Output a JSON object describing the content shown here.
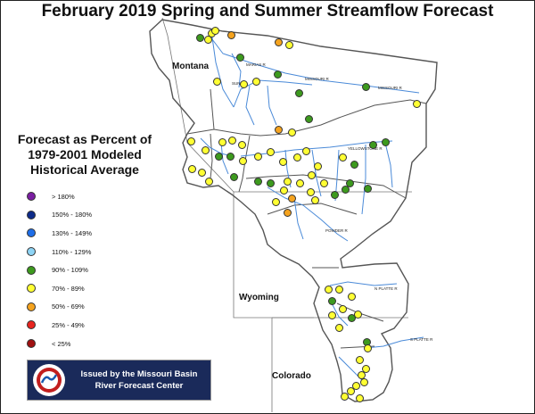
{
  "title": "February 2019 Spring and Summer Streamflow Forecast",
  "legend": {
    "title_lines": [
      "Forecast as Percent of",
      "1979-2001 Modeled",
      "Historical Average"
    ],
    "items": [
      {
        "label": "> 180%",
        "color": "#7b1fa2"
      },
      {
        "label": "150% - 180%",
        "color": "#0d2b8a"
      },
      {
        "label": "130% - 149%",
        "color": "#1e6ee8"
      },
      {
        "label": "110% - 129%",
        "color": "#8ed4f5"
      },
      {
        "label": "90% - 109%",
        "color": "#3d9a1e"
      },
      {
        "label": "70% - 89%",
        "color": "#ffff33"
      },
      {
        "label": "50% - 69%",
        "color": "#f5a31e"
      },
      {
        "label": "25% - 49%",
        "color": "#e8241e"
      },
      {
        "label": "< 25%",
        "color": "#a01010"
      }
    ]
  },
  "states": {
    "montana": "Montana",
    "wyoming": "Wyoming",
    "colorado": "Colorado"
  },
  "badge": {
    "line1": "Issued by the Missouri Basin",
    "line2": "River Forecast Center"
  },
  "colors": {
    "river": "#4a8ad8",
    "boundary": "#555555",
    "state_line": "#777777"
  }
}
